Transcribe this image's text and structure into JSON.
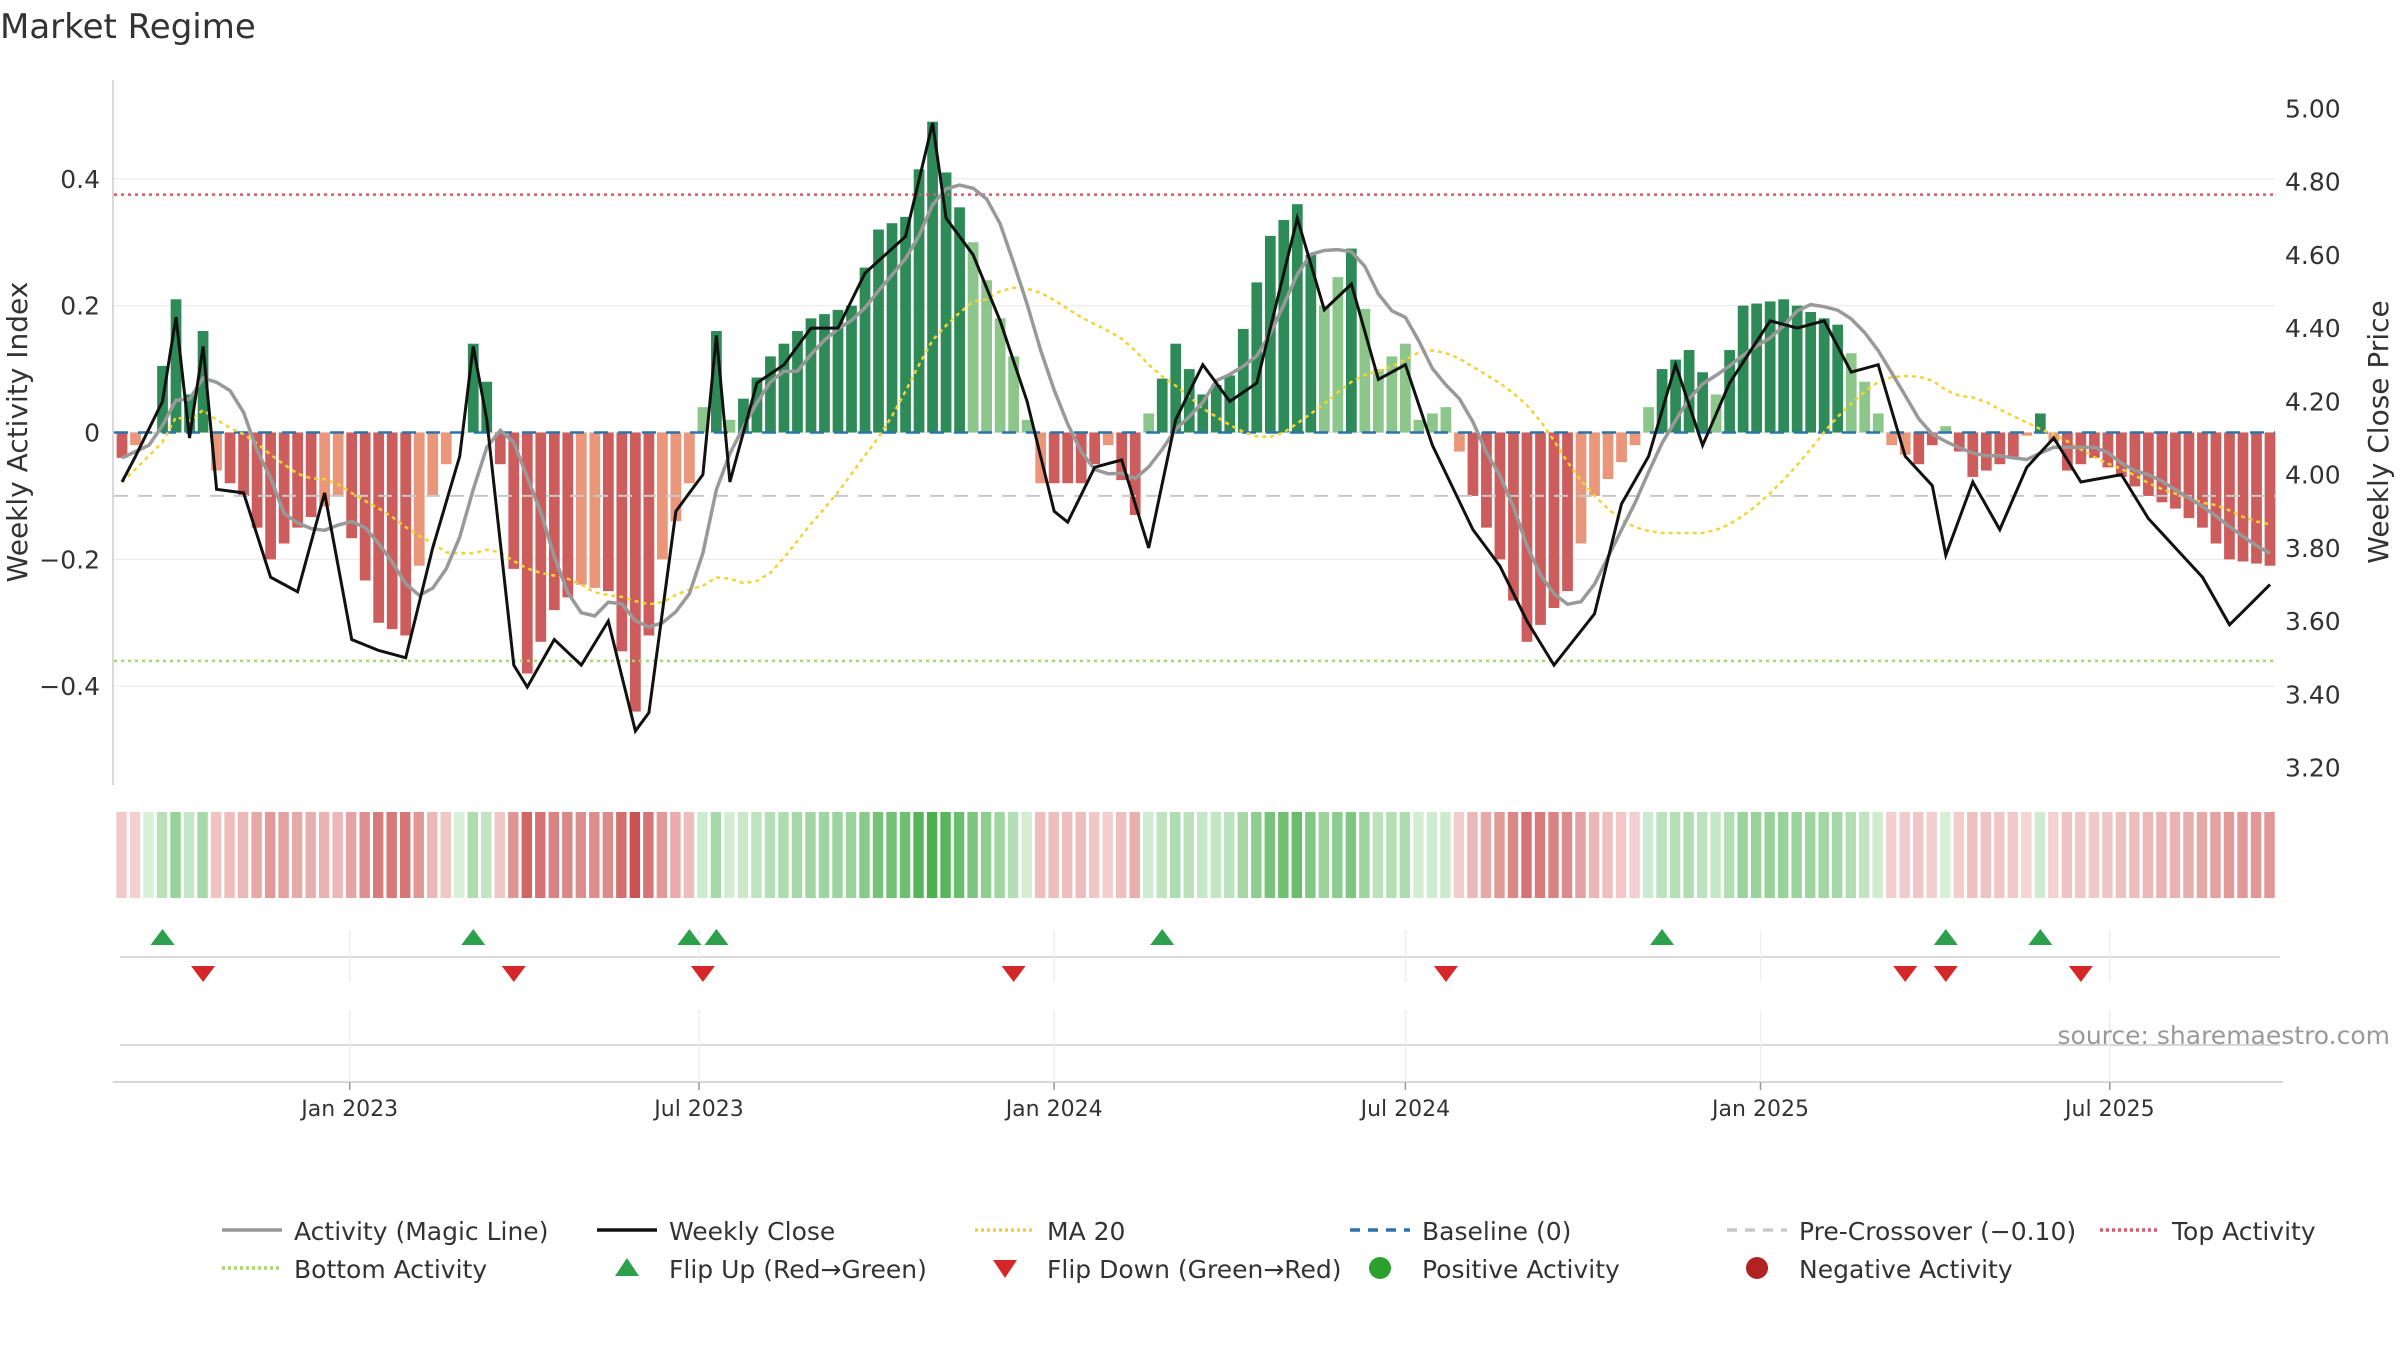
{
  "title": "Market Regime",
  "source": "source: sharemaestro.com",
  "colors": {
    "activity_line": "#999999",
    "close_line": "#111111",
    "ma20": "#f2d335",
    "baseline": "#2a74ad",
    "pre_crossover": "#c8c8c8",
    "top_activity": "#d9596b",
    "bottom_activity": "#a6d96a",
    "flip_up": "#2ca04a",
    "flip_down": "#d62728",
    "positive_activity": "#2ca02c",
    "negative_activity": "#b22222",
    "bar_pos_strong": "#2e8b57",
    "bar_pos_weak": "#8cc68a",
    "bar_neg_strong": "#cd5c5c",
    "bar_neg_weak": "#e9967a"
  },
  "chart_data": {
    "type": "bar",
    "y_left_label": "Weekly Activity Index",
    "y_right_label": "Weekly Close Price",
    "y_left_range": [
      -0.54,
      0.54
    ],
    "y_right_range": [
      3.18,
      5.05
    ],
    "y_left_ticks": [
      0.4,
      0.2,
      0,
      -0.2,
      -0.4
    ],
    "y_left_tick_labels": [
      "0.4",
      "0.2",
      "0",
      "−0.2",
      "−0.4"
    ],
    "y_right_ticks": [
      5.0,
      4.8,
      4.6,
      4.4,
      4.2,
      4.0,
      3.8,
      3.6,
      3.4,
      3.2
    ],
    "y_right_tick_labels": [
      "5.00",
      "4.80",
      "4.60",
      "4.40",
      "4.20",
      "4.00",
      "3.80",
      "3.60",
      "3.40",
      "3.20"
    ],
    "x_range": [
      "2022-09-05",
      "2025-09-22"
    ],
    "x_ticks": [
      "2023-01-01",
      "2023-07-01",
      "2024-01-01",
      "2024-07-01",
      "2025-01-01",
      "2025-07-01"
    ],
    "x_tick_labels": [
      "Jan 2023",
      "Jul 2023",
      "Jan 2024",
      "Jul 2024",
      "Jan 2025",
      "Jul 2025"
    ],
    "reference_lines": {
      "top_activity": 0.375,
      "bottom_activity": -0.36,
      "baseline": 0,
      "pre_crossover": -0.1
    },
    "activity_keyframes": [
      [
        "2022-09-05",
        -0.04
      ],
      [
        "2022-09-19",
        0.0
      ],
      [
        "2022-10-03",
        0.21
      ],
      [
        "2022-10-10",
        0.06
      ],
      [
        "2022-10-17",
        0.16
      ],
      [
        "2022-10-24",
        -0.06
      ],
      [
        "2022-11-07",
        -0.1
      ],
      [
        "2022-11-21",
        -0.2
      ],
      [
        "2022-12-05",
        -0.15
      ],
      [
        "2022-12-26",
        -0.1
      ],
      [
        "2023-01-16",
        -0.3
      ],
      [
        "2023-01-30",
        -0.32
      ],
      [
        "2023-02-13",
        -0.1
      ],
      [
        "2023-02-27",
        0.0
      ],
      [
        "2023-03-06",
        0.14
      ],
      [
        "2023-03-13",
        0.08
      ],
      [
        "2023-03-20",
        -0.05
      ],
      [
        "2023-04-03",
        -0.38
      ],
      [
        "2023-04-17",
        -0.28
      ],
      [
        "2023-05-01",
        -0.24
      ],
      [
        "2023-05-15",
        -0.25
      ],
      [
        "2023-05-29",
        -0.44
      ],
      [
        "2023-06-12",
        -0.2
      ],
      [
        "2023-06-26",
        -0.08
      ],
      [
        "2023-07-03",
        0.04
      ],
      [
        "2023-07-10",
        0.16
      ],
      [
        "2023-07-17",
        0.02
      ],
      [
        "2023-08-07",
        0.12
      ],
      [
        "2023-08-28",
        0.18
      ],
      [
        "2023-09-18",
        0.2
      ],
      [
        "2023-10-02",
        0.32
      ],
      [
        "2023-10-16",
        0.34
      ],
      [
        "2023-10-30",
        0.49
      ],
      [
        "2023-11-06",
        0.41
      ],
      [
        "2023-11-20",
        0.3
      ],
      [
        "2023-12-04",
        0.18
      ],
      [
        "2023-12-11",
        0.12
      ],
      [
        "2023-12-25",
        -0.08
      ],
      [
        "2024-01-15",
        -0.08
      ],
      [
        "2024-01-29",
        -0.02
      ],
      [
        "2024-02-12",
        -0.13
      ],
      [
        "2024-02-19",
        0.03
      ],
      [
        "2024-03-04",
        0.14
      ],
      [
        "2024-03-18",
        0.06
      ],
      [
        "2024-04-01",
        0.09
      ],
      [
        "2024-04-22",
        0.31
      ],
      [
        "2024-05-06",
        0.36
      ],
      [
        "2024-05-20",
        0.2
      ],
      [
        "2024-06-03",
        0.29
      ],
      [
        "2024-06-17",
        0.1
      ],
      [
        "2024-07-01",
        0.14
      ],
      [
        "2024-07-08",
        0.02
      ],
      [
        "2024-07-22",
        0.04
      ],
      [
        "2024-08-05",
        -0.1
      ],
      [
        "2024-08-19",
        -0.2
      ],
      [
        "2024-09-02",
        -0.33
      ],
      [
        "2024-09-23",
        -0.25
      ],
      [
        "2024-10-07",
        -0.1
      ],
      [
        "2024-10-28",
        -0.02
      ],
      [
        "2024-11-11",
        0.1
      ],
      [
        "2024-11-25",
        0.13
      ],
      [
        "2024-12-09",
        0.06
      ],
      [
        "2024-12-23",
        0.2
      ],
      [
        "2025-01-13",
        0.21
      ],
      [
        "2025-01-27",
        0.19
      ],
      [
        "2025-02-10",
        0.17
      ],
      [
        "2025-02-24",
        0.08
      ],
      [
        "2025-03-10",
        -0.02
      ],
      [
        "2025-03-24",
        -0.05
      ],
      [
        "2025-04-07",
        0.01
      ],
      [
        "2025-04-21",
        -0.07
      ],
      [
        "2025-05-12",
        -0.04
      ],
      [
        "2025-05-26",
        0.03
      ],
      [
        "2025-06-09",
        -0.06
      ],
      [
        "2025-06-23",
        -0.04
      ],
      [
        "2025-07-07",
        -0.07
      ],
      [
        "2025-07-21",
        -0.1
      ],
      [
        "2025-08-04",
        -0.12
      ],
      [
        "2025-08-18",
        -0.15
      ],
      [
        "2025-09-01",
        -0.2
      ],
      [
        "2025-09-22",
        -0.21
      ]
    ],
    "close_keyframes": [
      [
        "2022-09-05",
        3.98
      ],
      [
        "2022-09-12",
        4.05
      ],
      [
        "2022-09-26",
        4.2
      ],
      [
        "2022-10-03",
        4.43
      ],
      [
        "2022-10-10",
        4.1
      ],
      [
        "2022-10-17",
        4.35
      ],
      [
        "2022-10-24",
        3.96
      ],
      [
        "2022-11-07",
        3.95
      ],
      [
        "2022-11-21",
        3.72
      ],
      [
        "2022-12-05",
        3.68
      ],
      [
        "2022-12-19",
        3.95
      ],
      [
        "2023-01-02",
        3.55
      ],
      [
        "2023-01-16",
        3.52
      ],
      [
        "2023-01-30",
        3.5
      ],
      [
        "2023-02-13",
        3.8
      ],
      [
        "2023-02-27",
        4.05
      ],
      [
        "2023-03-06",
        4.35
      ],
      [
        "2023-03-13",
        4.15
      ],
      [
        "2023-03-27",
        3.48
      ],
      [
        "2023-04-03",
        3.42
      ],
      [
        "2023-04-17",
        3.55
      ],
      [
        "2023-05-01",
        3.48
      ],
      [
        "2023-05-15",
        3.6
      ],
      [
        "2023-05-29",
        3.3
      ],
      [
        "2023-06-05",
        3.35
      ],
      [
        "2023-06-19",
        3.9
      ],
      [
        "2023-07-03",
        4.0
      ],
      [
        "2023-07-10",
        4.38
      ],
      [
        "2023-07-17",
        3.98
      ],
      [
        "2023-07-31",
        4.25
      ],
      [
        "2023-08-14",
        4.3
      ],
      [
        "2023-08-28",
        4.4
      ],
      [
        "2023-09-11",
        4.4
      ],
      [
        "2023-09-25",
        4.55
      ],
      [
        "2023-10-16",
        4.65
      ],
      [
        "2023-10-30",
        4.96
      ],
      [
        "2023-11-06",
        4.7
      ],
      [
        "2023-11-20",
        4.6
      ],
      [
        "2023-12-04",
        4.42
      ],
      [
        "2023-12-18",
        4.2
      ],
      [
        "2024-01-01",
        3.9
      ],
      [
        "2024-01-08",
        3.87
      ],
      [
        "2024-01-22",
        4.02
      ],
      [
        "2024-02-05",
        4.04
      ],
      [
        "2024-02-19",
        3.8
      ],
      [
        "2024-03-04",
        4.15
      ],
      [
        "2024-03-18",
        4.3
      ],
      [
        "2024-04-01",
        4.2
      ],
      [
        "2024-04-15",
        4.25
      ],
      [
        "2024-05-06",
        4.7
      ],
      [
        "2024-05-20",
        4.45
      ],
      [
        "2024-06-03",
        4.52
      ],
      [
        "2024-06-17",
        4.26
      ],
      [
        "2024-07-01",
        4.3
      ],
      [
        "2024-07-15",
        4.08
      ],
      [
        "2024-08-05",
        3.85
      ],
      [
        "2024-08-19",
        3.75
      ],
      [
        "2024-09-02",
        3.6
      ],
      [
        "2024-09-16",
        3.48
      ],
      [
        "2024-10-07",
        3.62
      ],
      [
        "2024-10-21",
        3.92
      ],
      [
        "2024-11-04",
        4.05
      ],
      [
        "2024-11-18",
        4.3
      ],
      [
        "2024-12-02",
        4.08
      ],
      [
        "2024-12-16",
        4.25
      ],
      [
        "2025-01-06",
        4.42
      ],
      [
        "2025-01-20",
        4.4
      ],
      [
        "2025-02-03",
        4.42
      ],
      [
        "2025-02-17",
        4.28
      ],
      [
        "2025-03-03",
        4.3
      ],
      [
        "2025-03-17",
        4.05
      ],
      [
        "2025-03-31",
        3.97
      ],
      [
        "2025-04-07",
        3.78
      ],
      [
        "2025-04-21",
        3.98
      ],
      [
        "2025-05-05",
        3.85
      ],
      [
        "2025-05-19",
        4.02
      ],
      [
        "2025-06-02",
        4.1
      ],
      [
        "2025-06-16",
        3.98
      ],
      [
        "2025-07-07",
        4.0
      ],
      [
        "2025-07-21",
        3.88
      ],
      [
        "2025-08-04",
        3.8
      ],
      [
        "2025-08-18",
        3.72
      ],
      [
        "2025-09-01",
        3.59
      ],
      [
        "2025-09-22",
        3.7
      ]
    ],
    "activity_smoothing_weeks": 6,
    "ma_period_weeks": 20,
    "flip_up_dates": [
      "2022-09-26",
      "2023-03-06",
      "2023-06-26",
      "2023-07-10",
      "2024-02-26",
      "2024-11-11",
      "2025-04-07",
      "2025-05-26"
    ],
    "flip_down_dates": [
      "2022-10-17",
      "2023-03-27",
      "2023-07-03",
      "2023-12-11",
      "2024-07-22",
      "2025-03-17",
      "2025-04-07",
      "2025-06-16"
    ],
    "legend": [
      {
        "label": "Activity (Magic Line)",
        "kind": "line",
        "color": "#999999",
        "dash": ""
      },
      {
        "label": "Weekly Close",
        "kind": "line",
        "color": "#111111",
        "dash": ""
      },
      {
        "label": "MA 20",
        "kind": "line",
        "color": "#f2d335",
        "dash": "3,3"
      },
      {
        "label": "Baseline (0)",
        "kind": "line",
        "color": "#2a74ad",
        "dash": "10,8"
      },
      {
        "label": "Pre-Crossover (−0.10)",
        "kind": "line",
        "color": "#c8c8c8",
        "dash": "10,8"
      },
      {
        "label": "Top Activity",
        "kind": "line",
        "color": "#d9596b",
        "dash": "3,3"
      },
      {
        "label": "Bottom Activity",
        "kind": "line",
        "color": "#a6d96a",
        "dash": "3,3"
      },
      {
        "label": "Flip Up (Red→Green)",
        "kind": "tri-up",
        "color": "#2ca04a",
        "dash": ""
      },
      {
        "label": "Flip Down (Green→Red)",
        "kind": "tri-down",
        "color": "#d62728",
        "dash": ""
      },
      {
        "label": "Positive Activity",
        "kind": "dot",
        "color": "#2ca02c",
        "dash": ""
      },
      {
        "label": "Negative Activity",
        "kind": "dot",
        "color": "#b22222",
        "dash": ""
      }
    ]
  }
}
